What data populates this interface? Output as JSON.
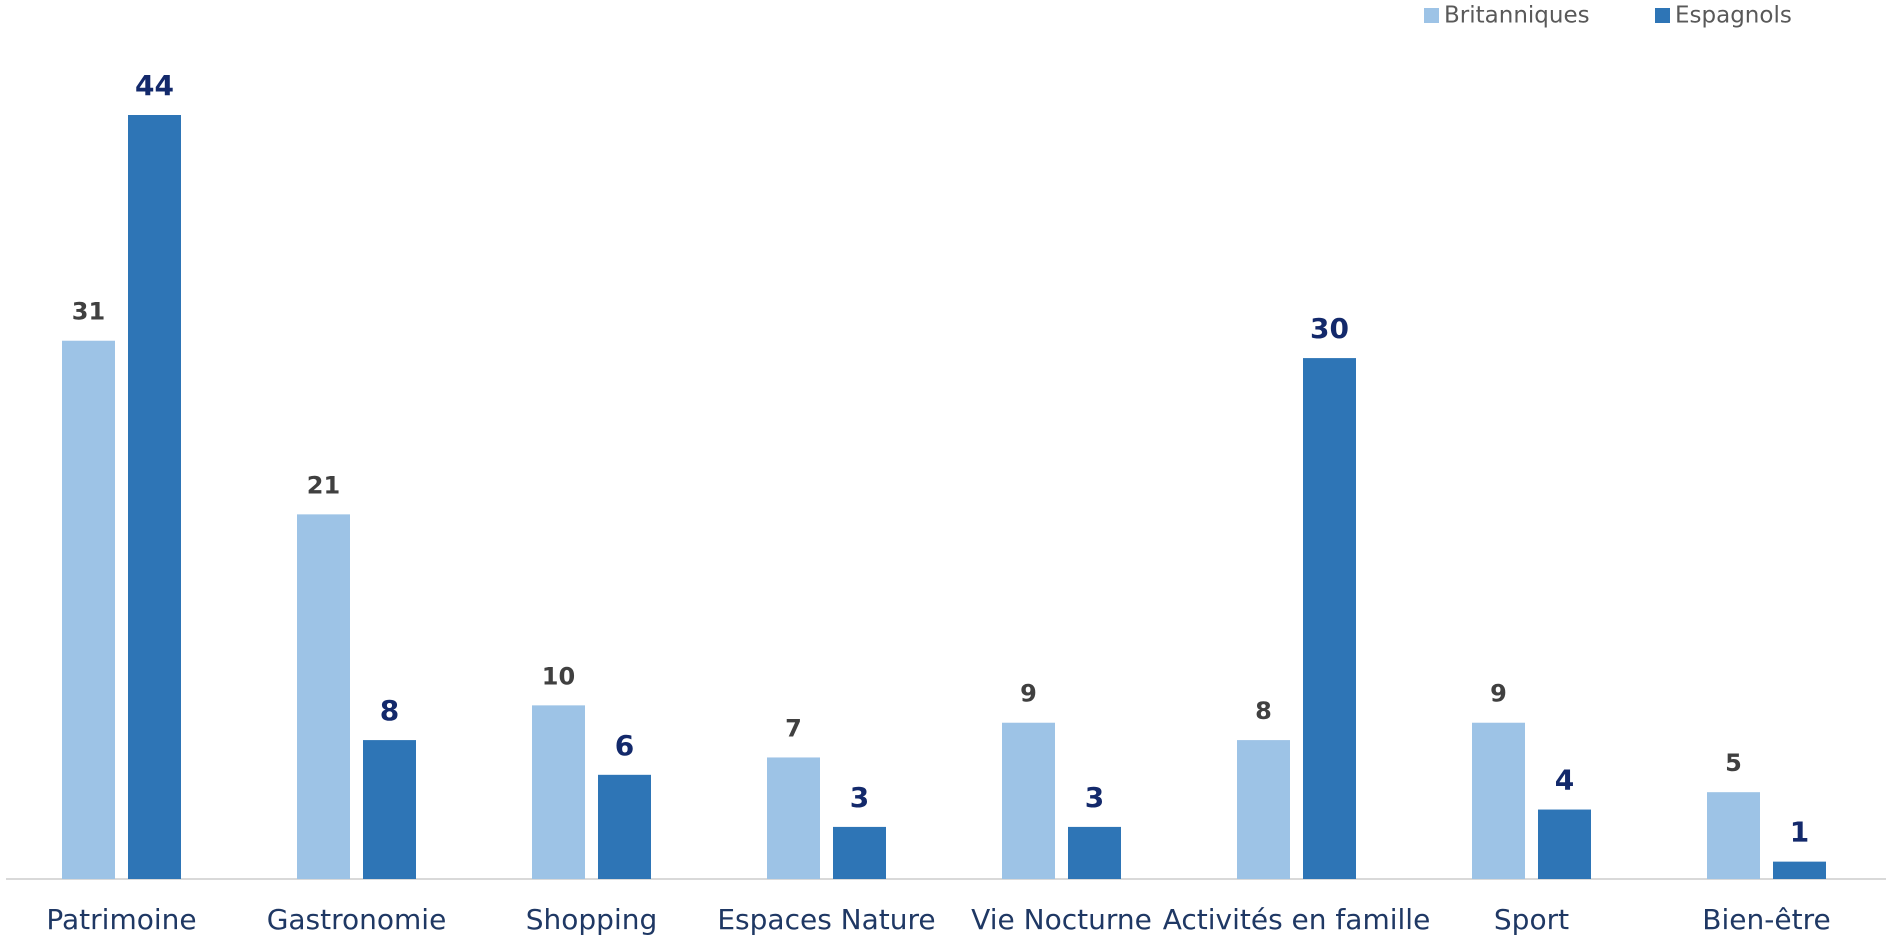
{
  "chart_data": {
    "type": "bar",
    "categories": [
      "Patrimoine",
      "Gastronomie",
      "Shopping",
      "Espaces Nature",
      "Vie Nocturne",
      "Activités en famille",
      "Sport",
      "Bien-être"
    ],
    "series": [
      {
        "name": "Britanniques",
        "color": "#9dc3e6",
        "values": [
          31,
          21,
          10,
          7,
          9,
          8,
          9,
          5
        ]
      },
      {
        "name": "Espagnols",
        "color": "#2e75b6",
        "values": [
          44,
          8,
          6,
          3,
          3,
          30,
          4,
          1
        ]
      }
    ],
    "legend": "top-right"
  }
}
